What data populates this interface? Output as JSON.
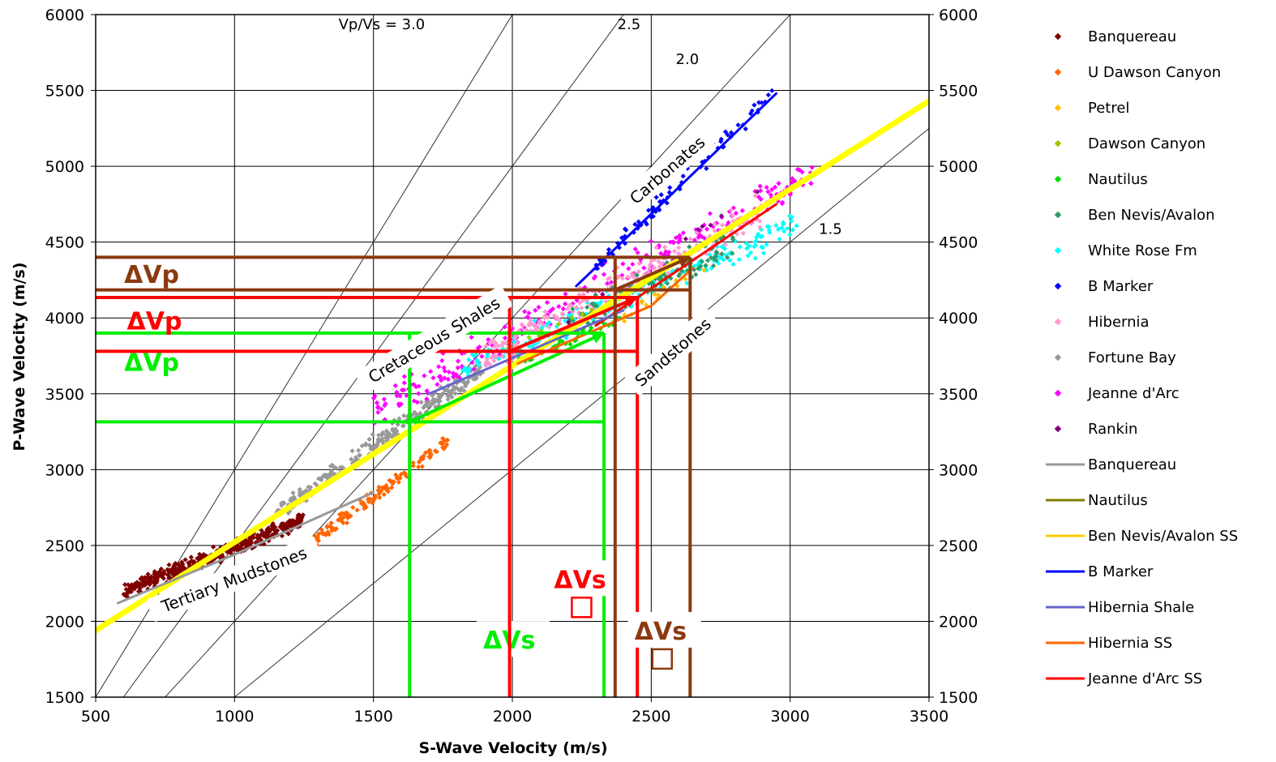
{
  "chart_data": {
    "type": "scatter",
    "xlabel": "S-Wave Velocity (m/s)",
    "ylabel": "P-Wave Velocity (m/s)",
    "xlim": [
      500,
      3500
    ],
    "ylim": [
      1500,
      6000
    ],
    "xticks": [
      500,
      1000,
      1500,
      2000,
      2500,
      3000,
      3500
    ],
    "yticks": [
      1500,
      2000,
      2500,
      3000,
      3500,
      4000,
      4500,
      5000,
      5500,
      6000
    ],
    "grid": true,
    "secondary_y_axis": true,
    "legend_position": "right",
    "legend": [
      {
        "name": "Banquereau",
        "kind": "marker",
        "color": "#800000"
      },
      {
        "name": "U Dawson Canyon",
        "kind": "marker",
        "color": "#ff6600"
      },
      {
        "name": "Petrel",
        "kind": "marker",
        "color": "#ffc000"
      },
      {
        "name": "Dawson Canyon",
        "kind": "marker",
        "color": "#99cc00"
      },
      {
        "name": "Nautilus",
        "kind": "marker",
        "color": "#00dd00"
      },
      {
        "name": "Ben Nevis/Avalon",
        "kind": "marker",
        "color": "#339966"
      },
      {
        "name": "White Rose Fm",
        "kind": "marker",
        "color": "#00ffff"
      },
      {
        "name": "B Marker",
        "kind": "marker",
        "color": "#0000ff"
      },
      {
        "name": "Hibernia",
        "kind": "marker",
        "color": "#ff99cc"
      },
      {
        "name": "Fortune Bay",
        "kind": "marker",
        "color": "#999999"
      },
      {
        "name": "Jeanne d'Arc",
        "kind": "marker",
        "color": "#ff00ff"
      },
      {
        "name": "Rankin",
        "kind": "marker",
        "color": "#800080"
      },
      {
        "name": "Banquereau",
        "kind": "line",
        "color": "#999999"
      },
      {
        "name": "Nautilus",
        "kind": "line",
        "color": "#808000"
      },
      {
        "name": "Ben Nevis/Avalon SS",
        "kind": "line",
        "color": "#ffcc00"
      },
      {
        "name": "B Marker",
        "kind": "line",
        "color": "#0000ff"
      },
      {
        "name": "Hibernia Shale",
        "kind": "line",
        "color": "#6666cc"
      },
      {
        "name": "Hibernia SS",
        "kind": "line",
        "color": "#ff6600"
      },
      {
        "name": "Jeanne d'Arc SS",
        "kind": "line",
        "color": "#ff0000"
      }
    ],
    "vpvs_lines": [
      {
        "ratio": 3.0,
        "label": "Vp/Vs = 3.0",
        "label_at": [
          1530,
          5905
        ]
      },
      {
        "ratio": 2.5,
        "label": "2.5",
        "label_at": [
          2420,
          5905
        ]
      },
      {
        "ratio": 2.0,
        "label": "2.0",
        "label_at": [
          2630,
          5675
        ]
      },
      {
        "ratio": 1.5,
        "label": "1.5",
        "label_at": [
          3145,
          4555
        ]
      }
    ],
    "trend_lines": [
      {
        "name": "Ben Nevis/Avalon SS (overall trend)",
        "color": "#ffff00",
        "width": 7,
        "points": [
          [
            500,
            1940
          ],
          [
            3500,
            5430
          ]
        ]
      },
      {
        "name": "Banquereau",
        "color": "#999999",
        "width": 3,
        "points": [
          [
            580,
            2120
          ],
          [
            1000,
            2440
          ],
          [
            1500,
            2850
          ]
        ]
      },
      {
        "name": "B Marker",
        "color": "#0000ff",
        "width": 3,
        "points": [
          [
            2230,
            4210
          ],
          [
            2950,
            5480
          ]
        ]
      },
      {
        "name": "Hibernia SS",
        "color": "#ff6600",
        "width": 3,
        "points": [
          [
            2020,
            3700
          ],
          [
            2500,
            4080
          ],
          [
            2650,
            4330
          ]
        ]
      },
      {
        "name": "Jeanne d'Arc SS",
        "color": "#ff0000",
        "width": 3,
        "points": [
          [
            2300,
            3950
          ],
          [
            2950,
            4750
          ]
        ]
      },
      {
        "name": "Hibernia Shale",
        "color": "#6666cc",
        "width": 3,
        "points": [
          [
            1700,
            3500
          ],
          [
            2400,
            4050
          ]
        ]
      }
    ],
    "scatter_clusters": [
      {
        "series": "Banquereau",
        "color": "#800000",
        "x": [
          600,
          1250
        ],
        "y_center": [
          2200,
          2670
        ],
        "spread": 70,
        "count": 420
      },
      {
        "series": "Fortune Bay",
        "color": "#999999",
        "x": [
          1150,
          1900
        ],
        "y_center": [
          2700,
          3680
        ],
        "spread": 90,
        "count": 260
      },
      {
        "series": "U Dawson Canyon",
        "color": "#ff6600",
        "x": [
          1250,
          1780
        ],
        "y_center": [
          2480,
          3200
        ],
        "spread": 70,
        "count": 140
      },
      {
        "series": "Jeanne d'Arc",
        "color": "#ff00ff",
        "x": [
          1500,
          3080
        ],
        "y_center": [
          3400,
          4950
        ],
        "spread": 170,
        "count": 260
      },
      {
        "series": "White Rose Fm",
        "color": "#00ffff",
        "x": [
          1800,
          3050
        ],
        "y_center": [
          3650,
          4650
        ],
        "spread": 150,
        "count": 200
      },
      {
        "series": "Hibernia",
        "color": "#ff99cc",
        "x": [
          1900,
          2900
        ],
        "y_center": [
          3750,
          4700
        ],
        "spread": 160,
        "count": 220
      },
      {
        "series": "Ben Nevis/Avalon",
        "color": "#339966",
        "x": [
          2200,
          2800
        ],
        "y_center": [
          3950,
          4500
        ],
        "spread": 150,
        "count": 110
      },
      {
        "series": "B Marker",
        "color": "#0000ff",
        "x": [
          2300,
          2950
        ],
        "y_center": [
          4350,
          5500
        ],
        "spread": 80,
        "count": 80
      },
      {
        "series": "Nautilus",
        "color": "#00dd00",
        "x": [
          2000,
          2400
        ],
        "y_center": [
          3700,
          4020
        ],
        "spread": 60,
        "count": 40
      },
      {
        "series": "Rankin",
        "color": "#800080",
        "x": [
          1650,
          2900
        ],
        "y_center": [
          3300,
          4850
        ],
        "spread": 60,
        "count": 8
      },
      {
        "series": "Dawson Canyon",
        "color": "#99cc00",
        "x": [
          1950,
          2300
        ],
        "y_center": [
          3800,
          4050
        ],
        "spread": 60,
        "count": 12
      },
      {
        "series": "Petrel",
        "color": "#ffc000",
        "x": [
          2350,
          2700
        ],
        "y_center": [
          3950,
          4350
        ],
        "spread": 60,
        "count": 15
      }
    ],
    "delta_overlays": [
      {
        "color": "#00ee00",
        "vs": [
          1630,
          2330
        ],
        "vp": [
          3315,
          3900
        ],
        "vp_label": "ΔVp",
        "vs_label": "ΔVs",
        "vp_label_at": [
          550,
          3650
        ],
        "vs_label_at": [
          1895,
          1820
        ]
      },
      {
        "color": "#ff0000",
        "vs": [
          1990,
          2450
        ],
        "vp": [
          3780,
          4135
        ],
        "vp_label": "ΔVp",
        "vs_label": "ΔVs",
        "vp_label_at": [
          560,
          3925
        ],
        "vs_label_at": [
          2150,
          2220
        ]
      },
      {
        "color": "#8b3a0f",
        "vs": [
          2370,
          2640
        ],
        "vp": [
          4185,
          4400
        ],
        "vp_label": "ΔVp",
        "vs_label": "ΔVs",
        "vp_label_at": [
          550,
          4230
        ],
        "vs_label_at": [
          2440,
          1880
        ]
      }
    ],
    "annotations": [
      {
        "text": "Carbonates",
        "x": 2560,
        "y": 4970,
        "angle": -41
      },
      {
        "text": "Cretaceous Shales",
        "x": 1720,
        "y": 3850,
        "angle": -31
      },
      {
        "text": "Sandstones",
        "x": 2580,
        "y": 3770,
        "angle": -41
      },
      {
        "text": "Tertiary Mudstones",
        "x": 1000,
        "y": 2270,
        "angle": -21
      }
    ]
  }
}
